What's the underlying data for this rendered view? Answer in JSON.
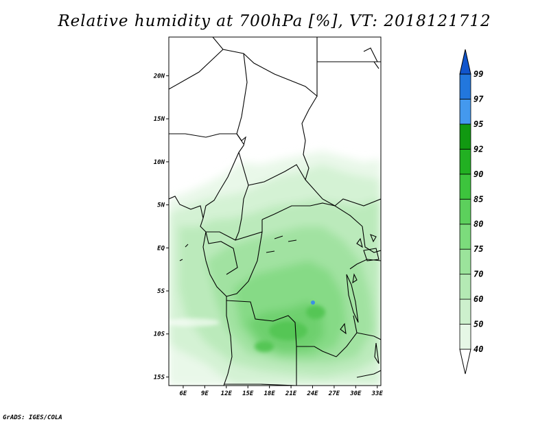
{
  "title": "Relative humidity at 700hPa [%], VT: 2018121712",
  "credit": "GrADS: IGES/COLA",
  "map": {
    "lon_labels": [
      "6E",
      "9E",
      "12E",
      "15E",
      "18E",
      "21E",
      "24E",
      "27E",
      "30E",
      "33E"
    ],
    "lat_labels": [
      "20N",
      "15N",
      "10N",
      "5N",
      "EQ",
      "5S",
      "10S",
      "15S"
    ],
    "lon_range": [
      4,
      33.5
    ],
    "lat_range": [
      -16,
      24.5
    ]
  },
  "colorbar": {
    "levels": [
      "40",
      "50",
      "60",
      "70",
      "75",
      "80",
      "85",
      "90",
      "92",
      "95",
      "97",
      "99"
    ],
    "colors": [
      "#ffffff",
      "#e6f7e6",
      "#cdf0cd",
      "#b4eab4",
      "#9be49b",
      "#7cdc7c",
      "#5cd05c",
      "#3dc43d",
      "#22b022",
      "#119911",
      "#4499ee",
      "#2277dd",
      "#1155cc"
    ]
  }
}
